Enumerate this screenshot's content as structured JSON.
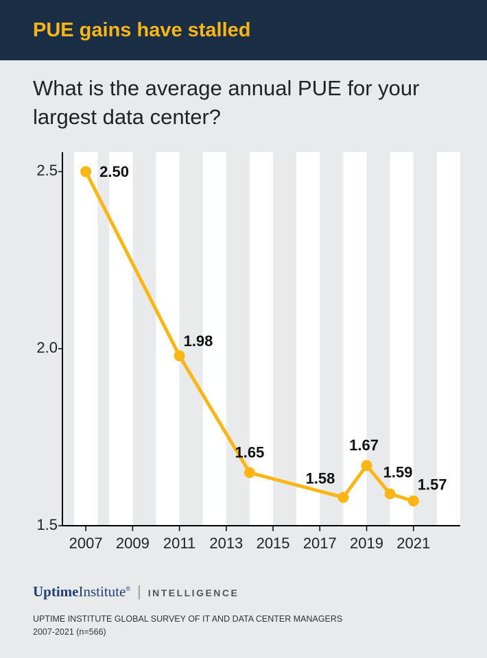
{
  "chart_data": {
    "type": "line",
    "title": "PUE gains have stalled",
    "subtitle": "What is the average annual PUE for your largest data center?",
    "x": [
      2007,
      2011,
      2014,
      2018,
      2019,
      2020,
      2021
    ],
    "series": [
      {
        "name": "PUE",
        "color": "#fbb615",
        "values": [
          2.5,
          1.98,
          1.65,
          1.58,
          1.67,
          1.59,
          1.57
        ],
        "value_labels": [
          "2.50",
          "1.98",
          "1.65",
          "1.58",
          "1.67",
          "1.59",
          "1.57"
        ]
      }
    ],
    "xlim": [
      2006,
      2023
    ],
    "xticks": [
      2007,
      2009,
      2011,
      2013,
      2015,
      2017,
      2019,
      2021
    ],
    "ylim": [
      1.5,
      2.555
    ],
    "yticks": [
      1.5,
      {
        "value": 2.0,
        "label": "2.0"
      },
      2.5
    ],
    "brand": {
      "name": "Uptime",
      "name2": "Institute",
      "mark": "®",
      "unit": "INTELLIGENCE"
    },
    "source": "UPTIME INSTITUTE GLOBAL SURVEY OF IT AND DATA CENTER MANAGERS 2007-2021 (n=566)"
  }
}
